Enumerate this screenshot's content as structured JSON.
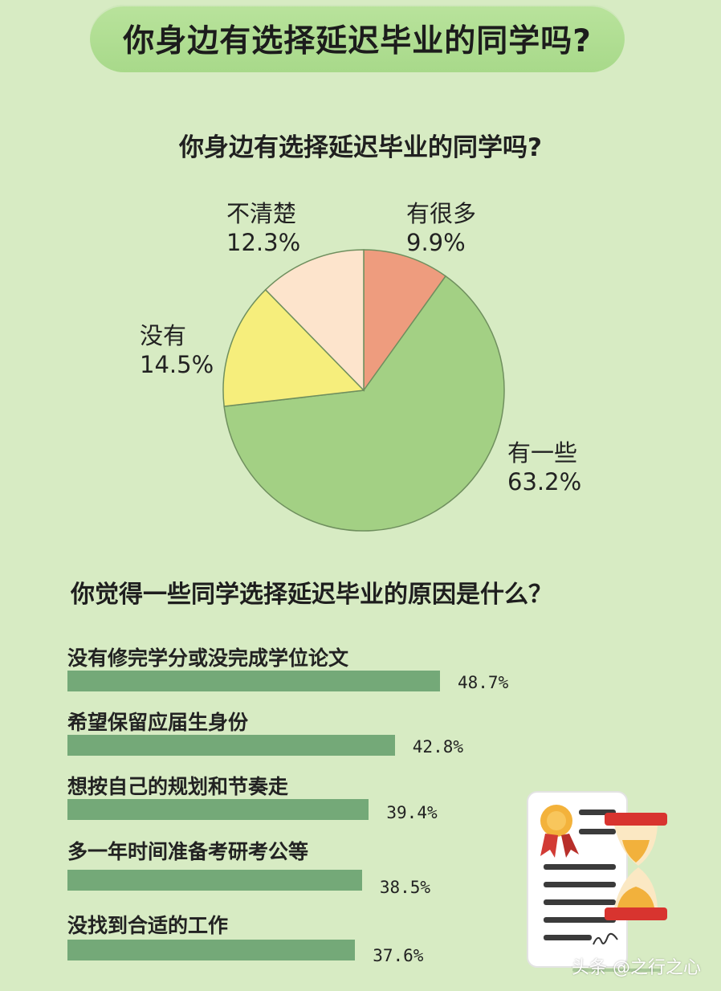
{
  "banner_title": "你身边有选择延迟毕业的同学吗?",
  "watermark": "头条 @之行之心",
  "chart_data": [
    {
      "type": "pie",
      "title": "你身边有选择延迟毕业的同学吗?",
      "slices": [
        {
          "label": "有很多",
          "value": 9.9,
          "value_text": "9.9%",
          "color": "#ee9c7e"
        },
        {
          "label": "有一些",
          "value": 63.2,
          "value_text": "63.2%",
          "color": "#a3d084"
        },
        {
          "label": "没有",
          "value": 14.5,
          "value_text": "14.5%",
          "color": "#f6ee7c"
        },
        {
          "label": "不清楚",
          "value": 12.3,
          "value_text": "12.3%",
          "color": "#fde4cc"
        }
      ]
    },
    {
      "type": "bar",
      "orientation": "horizontal",
      "title": "你觉得一些同学选择延迟毕业的原因是什么？",
      "unit": "%",
      "color": "#74a978",
      "categories": [
        "没有修完学分或没完成学位论文",
        "希望保留应届生身份",
        "想按自己的规划和节奏走",
        "多一年时间准备考研考公等",
        "没找到合适的工作"
      ],
      "values": [
        48.7,
        42.8,
        39.4,
        38.5,
        37.6
      ],
      "value_labels": [
        "48.7%",
        "42.8%",
        "39.4%",
        "38.5%",
        "37.6%"
      ]
    }
  ]
}
